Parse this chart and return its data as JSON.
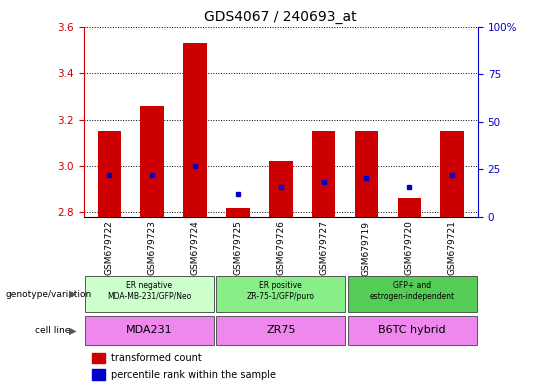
{
  "title": "GDS4067 / 240693_at",
  "samples": [
    "GSM679722",
    "GSM679723",
    "GSM679724",
    "GSM679725",
    "GSM679726",
    "GSM679727",
    "GSM679719",
    "GSM679720",
    "GSM679721"
  ],
  "red_values": [
    3.15,
    3.26,
    3.53,
    2.82,
    3.02,
    3.15,
    3.15,
    2.86,
    3.15
  ],
  "blue_values": [
    2.96,
    2.96,
    3.0,
    2.88,
    2.91,
    2.93,
    2.95,
    2.91,
    2.96
  ],
  "ylim_left": [
    2.78,
    3.6
  ],
  "ylim_right": [
    0,
    100
  ],
  "yticks_left": [
    2.8,
    3.0,
    3.2,
    3.4,
    3.6
  ],
  "yticks_right": [
    0,
    25,
    50,
    75,
    100
  ],
  "red_color": "#cc0000",
  "blue_color": "#0000cc",
  "bar_bottom": 2.78,
  "genotype_groups": [
    {
      "label": "ER negative\nMDA-MB-231/GFP/Neo",
      "start": 0,
      "end": 3,
      "color": "#ccffcc"
    },
    {
      "label": "ER positive\nZR-75-1/GFP/puro",
      "start": 3,
      "end": 6,
      "color": "#88ee88"
    },
    {
      "label": "GFP+ and\nestrogen-independent",
      "start": 6,
      "end": 9,
      "color": "#55cc55"
    }
  ],
  "cell_line_groups": [
    {
      "label": "MDA231",
      "start": 0,
      "end": 3,
      "color": "#ee88ee"
    },
    {
      "label": "ZR75",
      "start": 3,
      "end": 6,
      "color": "#ee88ee"
    },
    {
      "label": "B6TC hybrid",
      "start": 6,
      "end": 9,
      "color": "#ee88ee"
    }
  ],
  "legend_red": "transformed count",
  "legend_blue": "percentile rank within the sample",
  "label_genotype": "genotype/variation",
  "label_cell_line": "cell line",
  "xtick_bg": "#dddddd"
}
